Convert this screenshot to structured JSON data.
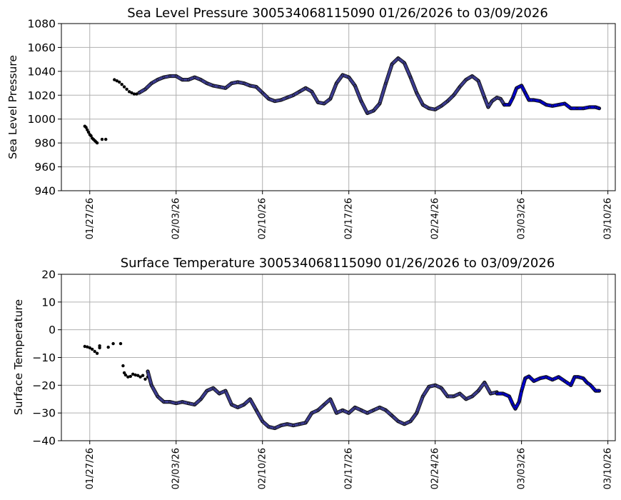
{
  "colors": {
    "early": "#000000",
    "mid": "#3b3b8f",
    "late": "#0000cc"
  },
  "chart_data": [
    {
      "type": "scatter",
      "title": "Sea Level Pressure 300534068115090  01/26/2026 to 03/09/2026",
      "xlabel": "",
      "ylabel": "Sea Level Pressure",
      "xlim": [
        -1.3,
        43.6
      ],
      "ylim": [
        940,
        1080
      ],
      "yticks": [
        940,
        960,
        980,
        1000,
        1020,
        1040,
        1060,
        1080
      ],
      "xticks": [
        {
          "day": 1,
          "label": "01/27/26"
        },
        {
          "day": 8,
          "label": "02/03/26"
        },
        {
          "day": 15,
          "label": "02/10/26"
        },
        {
          "day": 22,
          "label": "02/17/26"
        },
        {
          "day": 29,
          "label": "02/24/26"
        },
        {
          "day": 36,
          "label": "03/03/26"
        },
        {
          "day": 43,
          "label": "03/10/26"
        }
      ],
      "series": [
        {
          "name": "early",
          "color": "#000000",
          "style": "dots",
          "points": [
            [
              0.6,
              994
            ],
            [
              0.7,
              993
            ],
            [
              0.8,
              991
            ],
            [
              0.9,
              989
            ],
            [
              1.0,
              987
            ],
            [
              1.1,
              986
            ],
            [
              1.2,
              984
            ],
            [
              1.3,
              983
            ],
            [
              1.4,
              982
            ],
            [
              1.5,
              981
            ],
            [
              1.6,
              980
            ],
            [
              2.0,
              983
            ],
            [
              2.3,
              983
            ],
            [
              3.0,
              1033
            ],
            [
              3.2,
              1032
            ],
            [
              3.4,
              1031
            ],
            [
              3.6,
              1029
            ],
            [
              3.8,
              1027
            ],
            [
              4.0,
              1025
            ],
            [
              4.2,
              1023
            ],
            [
              4.4,
              1022
            ],
            [
              4.6,
              1021
            ],
            [
              4.8,
              1021
            ],
            [
              5.0,
              1022
            ]
          ]
        },
        {
          "name": "mid",
          "color": "#3b3b8f",
          "style": "line",
          "points": [
            [
              5.0,
              1022
            ],
            [
              5.5,
              1025
            ],
            [
              6.0,
              1030
            ],
            [
              6.5,
              1033
            ],
            [
              7.0,
              1035
            ],
            [
              7.5,
              1036
            ],
            [
              8.0,
              1036
            ],
            [
              8.5,
              1033
            ],
            [
              9.0,
              1033
            ],
            [
              9.5,
              1035
            ],
            [
              10.0,
              1033
            ],
            [
              10.5,
              1030
            ],
            [
              11.0,
              1028
            ],
            [
              11.5,
              1027
            ],
            [
              12.0,
              1026
            ],
            [
              12.5,
              1030
            ],
            [
              13.0,
              1031
            ],
            [
              13.5,
              1030
            ],
            [
              14.0,
              1028
            ],
            [
              14.5,
              1027
            ],
            [
              15.0,
              1022
            ],
            [
              15.5,
              1017
            ],
            [
              16.0,
              1015
            ],
            [
              16.5,
              1016
            ],
            [
              17.0,
              1018
            ],
            [
              17.5,
              1020
            ],
            [
              18.0,
              1023
            ],
            [
              18.5,
              1026
            ],
            [
              19.0,
              1023
            ],
            [
              19.5,
              1014
            ],
            [
              20.0,
              1013
            ],
            [
              20.5,
              1017
            ],
            [
              21.0,
              1030
            ],
            [
              21.5,
              1037
            ],
            [
              22.0,
              1035
            ],
            [
              22.5,
              1028
            ],
            [
              23.0,
              1015
            ],
            [
              23.5,
              1005
            ],
            [
              24.0,
              1007
            ],
            [
              24.5,
              1013
            ],
            [
              25.0,
              1030
            ],
            [
              25.5,
              1046
            ],
            [
              26.0,
              1051
            ],
            [
              26.5,
              1047
            ],
            [
              27.0,
              1035
            ],
            [
              27.5,
              1022
            ],
            [
              28.0,
              1012
            ],
            [
              28.5,
              1009
            ],
            [
              29.0,
              1008
            ],
            [
              29.5,
              1011
            ],
            [
              30.0,
              1015
            ],
            [
              30.5,
              1020
            ],
            [
              31.0,
              1027
            ],
            [
              31.5,
              1033
            ],
            [
              32.0,
              1036
            ],
            [
              32.5,
              1032
            ],
            [
              33.0,
              1018
            ],
            [
              33.3,
              1010
            ],
            [
              33.6,
              1015
            ],
            [
              34.0,
              1018
            ],
            [
              34.3,
              1017
            ],
            [
              34.6,
              1012
            ]
          ]
        },
        {
          "name": "late",
          "color": "#0000cc",
          "style": "line",
          "points": [
            [
              34.6,
              1012
            ],
            [
              35.0,
              1012
            ],
            [
              35.3,
              1018
            ],
            [
              35.6,
              1026
            ],
            [
              36.0,
              1028
            ],
            [
              36.3,
              1022
            ],
            [
              36.6,
              1016
            ],
            [
              37.0,
              1016
            ],
            [
              37.5,
              1015
            ],
            [
              38.0,
              1012
            ],
            [
              38.5,
              1011
            ],
            [
              39.0,
              1012
            ],
            [
              39.5,
              1013
            ],
            [
              40.0,
              1009
            ],
            [
              40.5,
              1009
            ],
            [
              41.0,
              1009
            ],
            [
              41.5,
              1010
            ],
            [
              42.0,
              1010
            ],
            [
              42.3,
              1009
            ]
          ]
        }
      ]
    },
    {
      "type": "scatter",
      "title": "Surface Temperature 300534068115090  01/26/2026 to 03/09/2026",
      "xlabel": "",
      "ylabel": "Surface Temperature",
      "xlim": [
        -1.3,
        43.6
      ],
      "ylim": [
        -40,
        20
      ],
      "yticks": [
        -40,
        -30,
        -20,
        -10,
        0,
        10,
        20
      ],
      "ytick_labels": [
        "−40",
        "−30",
        "−20",
        "−10",
        "0",
        "10",
        "20"
      ],
      "xticks": [
        {
          "day": 1,
          "label": "01/27/26"
        },
        {
          "day": 8,
          "label": "02/03/26"
        },
        {
          "day": 15,
          "label": "02/10/26"
        },
        {
          "day": 22,
          "label": "02/17/26"
        },
        {
          "day": 29,
          "label": "02/24/26"
        },
        {
          "day": 36,
          "label": "03/03/26"
        },
        {
          "day": 43,
          "label": "03/10/26"
        }
      ],
      "series": [
        {
          "name": "early",
          "color": "#000000",
          "style": "dots",
          "points": [
            [
              0.6,
              -6
            ],
            [
              0.8,
              -6.2
            ],
            [
              1.0,
              -6.5
            ],
            [
              1.2,
              -7
            ],
            [
              1.4,
              -7.8
            ],
            [
              1.6,
              -8.5
            ],
            [
              1.8,
              -6.5
            ],
            [
              1.8,
              -5.8
            ],
            [
              2.5,
              -6.3
            ],
            [
              2.9,
              -5
            ],
            [
              3.5,
              -5
            ],
            [
              3.7,
              -13
            ],
            [
              3.8,
              -15.5
            ],
            [
              3.9,
              -16.3
            ],
            [
              4.1,
              -17
            ],
            [
              4.3,
              -16.8
            ],
            [
              4.5,
              -16
            ],
            [
              4.7,
              -16.3
            ],
            [
              4.9,
              -16.5
            ],
            [
              5.1,
              -17
            ],
            [
              5.3,
              -16.5
            ],
            [
              5.5,
              -17.8
            ],
            [
              5.7,
              -17
            ]
          ]
        },
        {
          "name": "mid",
          "color": "#3b3b8f",
          "style": "line",
          "points": [
            [
              5.7,
              -15
            ],
            [
              6.0,
              -20
            ],
            [
              6.5,
              -24
            ],
            [
              7.0,
              -26
            ],
            [
              7.5,
              -26
            ],
            [
              8.0,
              -26.5
            ],
            [
              8.5,
              -26
            ],
            [
              9.0,
              -26.5
            ],
            [
              9.5,
              -27
            ],
            [
              10.0,
              -25
            ],
            [
              10.5,
              -22
            ],
            [
              11.0,
              -21
            ],
            [
              11.5,
              -23
            ],
            [
              12.0,
              -22
            ],
            [
              12.5,
              -27
            ],
            [
              13.0,
              -28
            ],
            [
              13.5,
              -27
            ],
            [
              14.0,
              -25
            ],
            [
              14.5,
              -29
            ],
            [
              15.0,
              -33
            ],
            [
              15.5,
              -35
            ],
            [
              16.0,
              -35.5
            ],
            [
              16.5,
              -34.5
            ],
            [
              17.0,
              -34
            ],
            [
              17.5,
              -34.5
            ],
            [
              18.0,
              -34
            ],
            [
              18.5,
              -33.5
            ],
            [
              19.0,
              -30
            ],
            [
              19.5,
              -29
            ],
            [
              20.0,
              -27
            ],
            [
              20.5,
              -25
            ],
            [
              21.0,
              -30
            ],
            [
              21.5,
              -29
            ],
            [
              22.0,
              -30
            ],
            [
              22.5,
              -28
            ],
            [
              23.0,
              -29
            ],
            [
              23.5,
              -30
            ],
            [
              24.0,
              -29
            ],
            [
              24.5,
              -28
            ],
            [
              25.0,
              -29
            ],
            [
              25.5,
              -31
            ],
            [
              26.0,
              -33
            ],
            [
              26.5,
              -34
            ],
            [
              27.0,
              -33
            ],
            [
              27.5,
              -30
            ],
            [
              28.0,
              -24
            ],
            [
              28.5,
              -20.5
            ],
            [
              29.0,
              -20
            ],
            [
              29.5,
              -21
            ],
            [
              30.0,
              -24
            ],
            [
              30.5,
              -24
            ],
            [
              31.0,
              -23
            ],
            [
              31.5,
              -25
            ],
            [
              32.0,
              -24
            ],
            [
              32.5,
              -22
            ],
            [
              33.0,
              -19
            ],
            [
              33.5,
              -23
            ],
            [
              34.0,
              -22.5
            ]
          ]
        },
        {
          "name": "late",
          "color": "#0000cc",
          "style": "line",
          "points": [
            [
              34.0,
              -23
            ],
            [
              34.5,
              -23
            ],
            [
              35.0,
              -24
            ],
            [
              35.3,
              -27
            ],
            [
              35.5,
              -28.5
            ],
            [
              35.8,
              -26
            ],
            [
              36.0,
              -22
            ],
            [
              36.3,
              -17.5
            ],
            [
              36.6,
              -16.8
            ],
            [
              37.0,
              -18.5
            ],
            [
              37.5,
              -17.5
            ],
            [
              38.0,
              -17
            ],
            [
              38.5,
              -18
            ],
            [
              39.0,
              -17
            ],
            [
              39.5,
              -18.5
            ],
            [
              40.0,
              -20
            ],
            [
              40.3,
              -17
            ],
            [
              40.6,
              -17
            ],
            [
              41.0,
              -17.5
            ],
            [
              41.3,
              -19
            ],
            [
              41.6,
              -20
            ],
            [
              42.0,
              -22
            ],
            [
              42.3,
              -22
            ]
          ]
        }
      ]
    }
  ]
}
